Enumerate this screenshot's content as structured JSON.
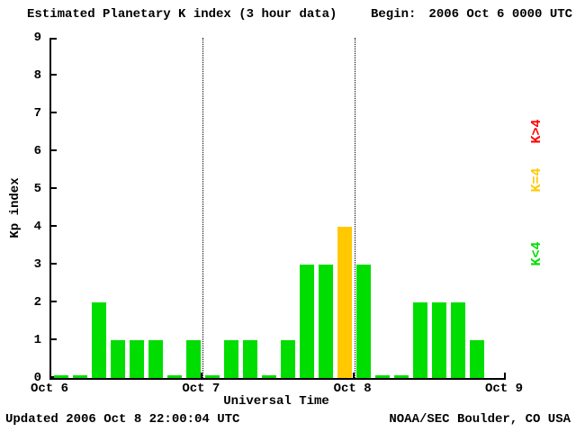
{
  "header": {
    "title": "Estimated Planetary K index (3 hour data)",
    "begin_label": "Begin:",
    "begin_value": "2006 Oct 6 0000 UTC"
  },
  "footer": {
    "updated": "Updated 2006 Oct 8 22:00:04 UTC",
    "source": "NOAA/SEC Boulder, CO USA"
  },
  "chart_data": {
    "type": "bar",
    "title": "Estimated Planetary K index (3 hour data)",
    "xlabel": "Universal Time",
    "ylabel": "Kp index",
    "ylim": [
      0,
      9
    ],
    "y_ticks": [
      0,
      1,
      2,
      3,
      4,
      5,
      6,
      7,
      8,
      9
    ],
    "x_ticks": [
      "Oct 6",
      "Oct 7",
      "Oct 8",
      "Oct 9"
    ],
    "slots_per_day": 8,
    "bar_interval_hours": 3,
    "values": [
      0,
      0,
      2,
      1,
      1,
      1,
      0,
      1,
      0,
      1,
      1,
      0,
      1,
      3,
      3,
      4,
      3,
      0,
      0,
      2,
      2,
      2,
      1
    ],
    "colors": {
      "below4": "#00DD00",
      "equal4": "#FFC800",
      "above4": "#FF0000",
      "axis": "#000000",
      "background": "#FFFFFF"
    },
    "legend": [
      {
        "name": "legend-k-above-4",
        "label": "K>4",
        "color": "#FF0000"
      },
      {
        "name": "legend-k-equal-4",
        "label": "K=4",
        "color": "#FFC800"
      },
      {
        "name": "legend-k-below-4",
        "label": "K<4",
        "color": "#00DD00"
      }
    ],
    "legend_position": "right",
    "grid": "vertical-dotted-day-boundaries",
    "gridlines_at": [
      "Oct 7",
      "Oct 8"
    ]
  }
}
